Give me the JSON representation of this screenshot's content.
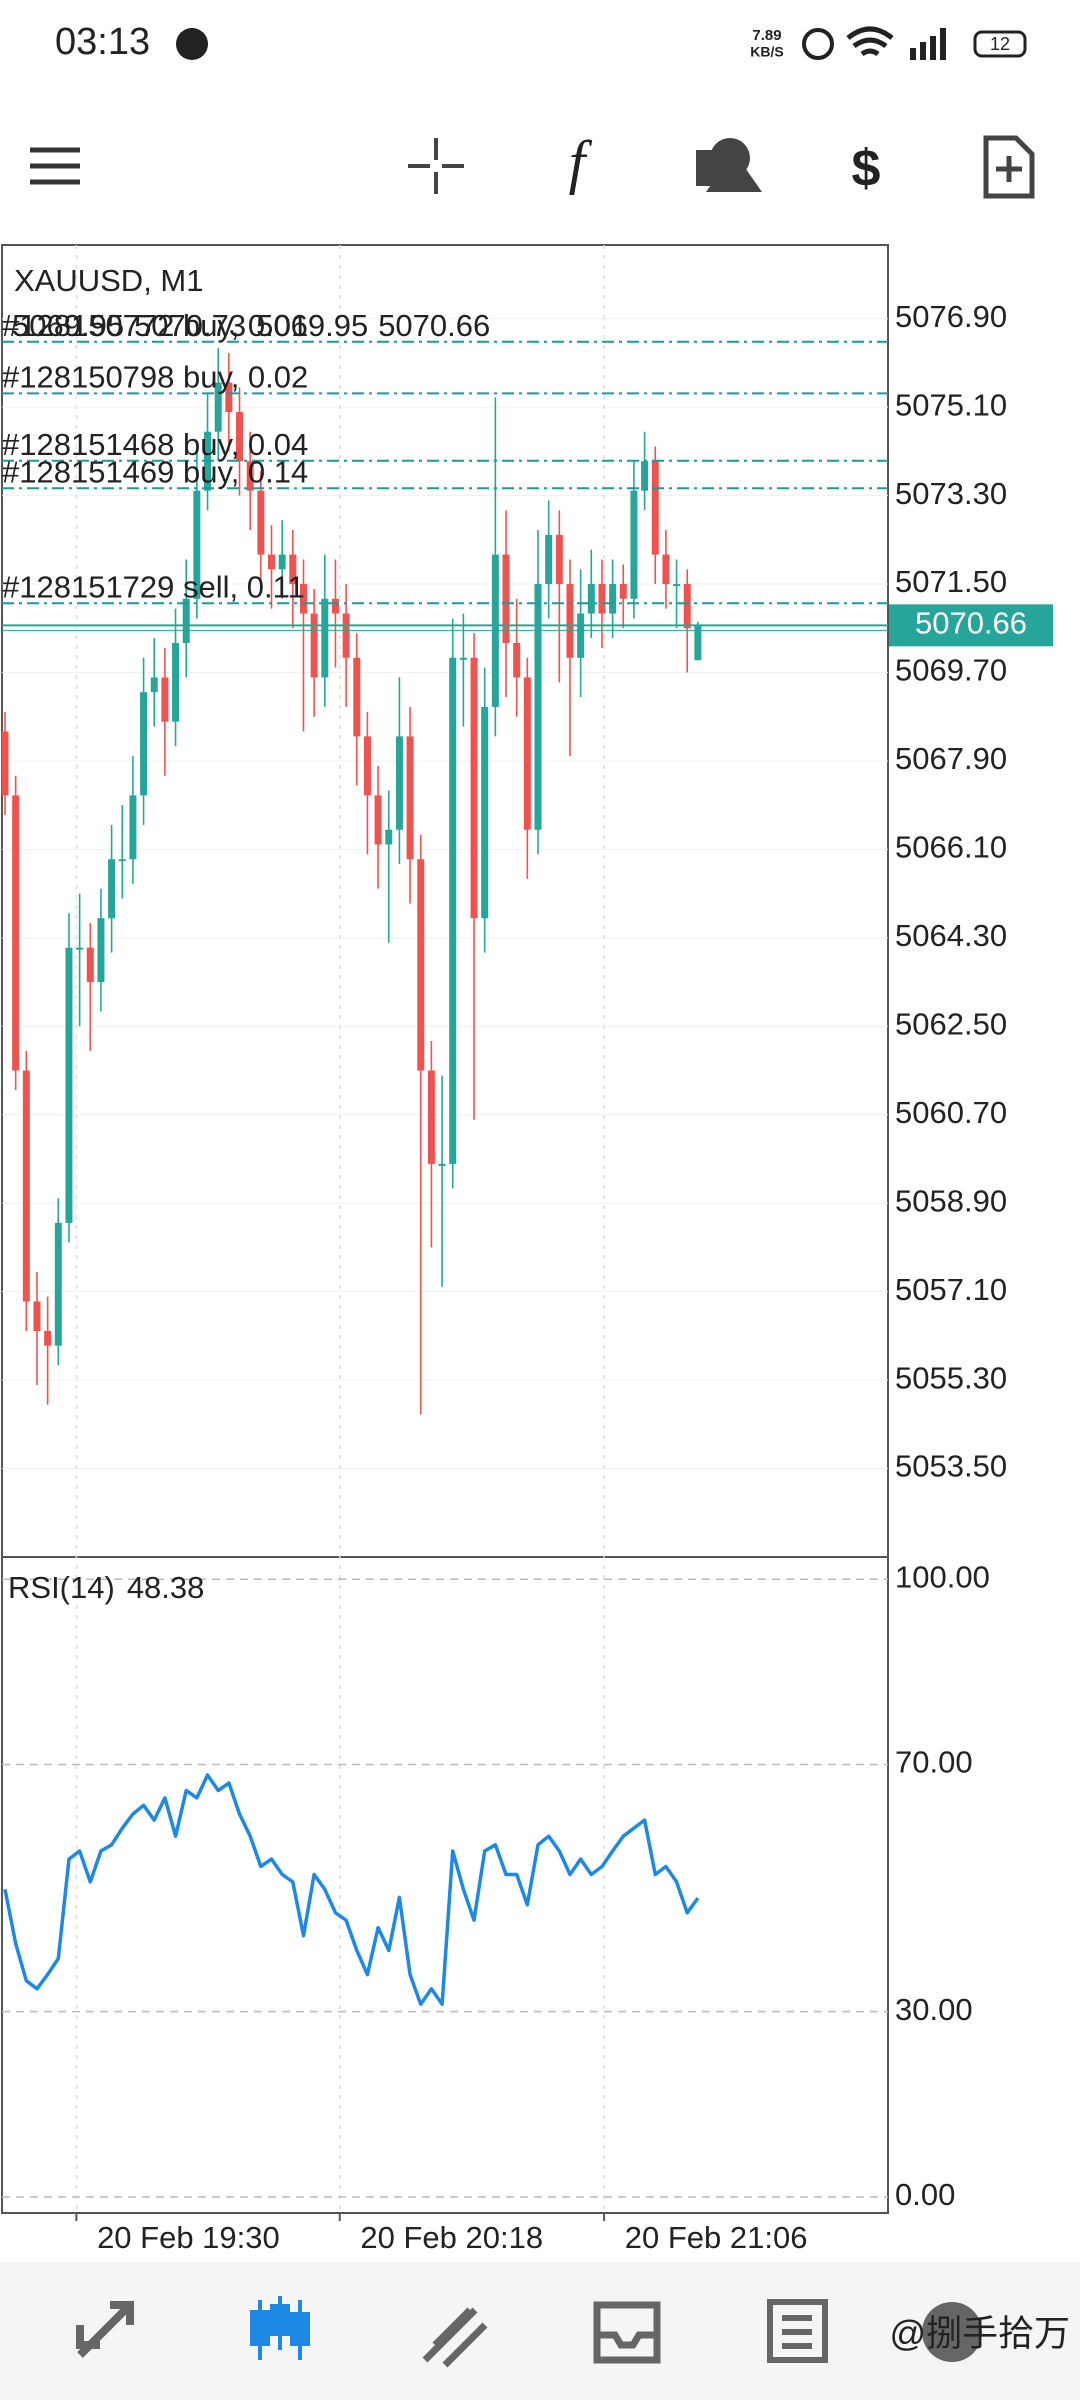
{
  "status_bar": {
    "time": "03:13",
    "net_speed": "7.89",
    "net_unit": "KB/S",
    "battery": "12"
  },
  "chart_data": [
    {
      "type": "candlestick",
      "title": "XAUUSD, M1",
      "open": [
        5068.5,
        5067.2,
        5061.6,
        5056.9,
        5056.3,
        5056.0,
        5058.5,
        5064.1,
        5064.1,
        5063.4,
        5064.7,
        5065.9,
        5065.9,
        5067.2,
        5069.3,
        5069.6,
        5068.7,
        5070.3,
        5071.2,
        5073.4,
        5074.6,
        5075.6,
        5075.0,
        5074.0,
        5073.4,
        5072.1,
        5071.8,
        5072.1,
        5071.5,
        5070.9,
        5069.6,
        5071.2,
        5070.9,
        5070.0,
        5068.4,
        5067.2,
        5066.2,
        5066.5,
        5068.4,
        5065.9,
        5061.6,
        5059.7,
        5059.7,
        5070.0,
        5070.0,
        5064.7,
        5069.0,
        5072.1,
        5070.3,
        5069.6,
        5066.5,
        5071.5,
        5072.5,
        5071.5,
        5070.0,
        5070.9,
        5071.5,
        5070.9,
        5071.5,
        5071.2,
        5073.4,
        5074.0,
        5072.1,
        5071.5,
        5071.5,
        5069.95
      ],
      "high": [
        5068.9,
        5067.6,
        5062.0,
        5057.5,
        5057.0,
        5059.0,
        5064.8,
        5065.2,
        5064.6,
        5065.3,
        5066.6,
        5067.0,
        5068.0,
        5070.0,
        5070.4,
        5070.2,
        5071.0,
        5072.0,
        5074.2,
        5075.4,
        5076.3,
        5076.2,
        5075.5,
        5074.6,
        5073.8,
        5072.7,
        5072.8,
        5072.6,
        5072.0,
        5071.4,
        5072.1,
        5072.0,
        5071.5,
        5070.5,
        5068.9,
        5067.8,
        5067.3,
        5069.6,
        5069.0,
        5066.4,
        5062.2,
        5061.5,
        5070.8,
        5070.9,
        5070.5,
        5069.8,
        5075.3,
        5073.0,
        5071.2,
        5070.0,
        5072.6,
        5073.2,
        5073.0,
        5072.0,
        5071.8,
        5072.2,
        5072.0,
        5072.0,
        5071.9,
        5074.0,
        5074.6,
        5074.3,
        5072.6,
        5072.0,
        5071.8,
        5070.73
      ],
      "low": [
        5066.8,
        5061.2,
        5056.3,
        5055.2,
        5054.8,
        5055.6,
        5058.1,
        5062.5,
        5062.0,
        5062.8,
        5064.0,
        5065.1,
        5065.4,
        5066.6,
        5068.6,
        5067.6,
        5068.2,
        5069.6,
        5070.8,
        5073.0,
        5074.0,
        5074.2,
        5073.3,
        5072.6,
        5071.5,
        5071.0,
        5071.2,
        5070.6,
        5068.5,
        5068.8,
        5069.0,
        5069.8,
        5069.0,
        5067.4,
        5066.0,
        5065.3,
        5064.2,
        5065.8,
        5065.0,
        5054.6,
        5058.0,
        5057.2,
        5059.2,
        5068.6,
        5060.6,
        5064.0,
        5068.4,
        5069.2,
        5068.8,
        5065.5,
        5066.0,
        5070.8,
        5069.5,
        5068.0,
        5069.2,
        5070.4,
        5070.2,
        5070.4,
        5070.6,
        5070.8,
        5073.0,
        5071.5,
        5071.0,
        5070.6,
        5069.7,
        5069.95
      ],
      "close": [
        5067.2,
        5061.6,
        5056.9,
        5056.3,
        5056.0,
        5058.5,
        5064.1,
        5064.1,
        5063.4,
        5064.7,
        5065.9,
        5065.9,
        5067.2,
        5069.3,
        5069.6,
        5068.7,
        5070.3,
        5071.2,
        5073.4,
        5074.6,
        5075.6,
        5075.0,
        5074.0,
        5073.4,
        5072.1,
        5071.8,
        5072.1,
        5071.5,
        5070.9,
        5069.6,
        5071.2,
        5070.9,
        5070.0,
        5068.4,
        5067.2,
        5066.2,
        5066.5,
        5068.4,
        5065.9,
        5061.6,
        5059.7,
        5059.7,
        5070.0,
        5070.0,
        5064.7,
        5069.0,
        5072.1,
        5070.3,
        5069.6,
        5066.5,
        5071.5,
        5072.5,
        5071.5,
        5070.0,
        5070.9,
        5071.5,
        5070.9,
        5071.5,
        5071.2,
        5073.4,
        5074.0,
        5072.1,
        5071.5,
        5071.5,
        5070.6,
        5070.66
      ],
      "up_color": "#26a69a",
      "down_color": "#ef5350",
      "order_color": "#1b9a9a",
      "ylim": [
        5051.7,
        5078.4
      ],
      "yticks": [
        {
          "value": 5076.9,
          "label": "5076.90"
        },
        {
          "value": 5075.1,
          "label": "5075.10"
        },
        {
          "value": 5073.3,
          "label": "5073.30"
        },
        {
          "value": 5071.5,
          "label": "5071.50"
        },
        {
          "value": 5069.7,
          "label": "5069.70"
        },
        {
          "value": 5067.9,
          "label": "5067.90"
        },
        {
          "value": 5066.1,
          "label": "5066.10"
        },
        {
          "value": 5064.3,
          "label": "5064.30"
        },
        {
          "value": 5062.5,
          "label": "5062.50"
        },
        {
          "value": 5060.7,
          "label": "5060.70"
        },
        {
          "value": 5058.9,
          "label": "5058.90"
        },
        {
          "value": 5057.1,
          "label": "5057.10"
        },
        {
          "value": 5055.3,
          "label": "5055.30"
        },
        {
          "value": 5053.5,
          "label": "5053.50"
        }
      ],
      "xticks": [
        {
          "value": 6.7,
          "label": "20 Feb 19:30"
        },
        {
          "value": 31.4,
          "label": "20 Feb 20:18"
        },
        {
          "value": 56.2,
          "label": "20 Feb 21:06"
        }
      ],
      "grid": true,
      "orders": [
        {
          "label": "#128150772 buy, 0.01",
          "price": 5076.43
        },
        {
          "label": "#128150798 buy, 0.02",
          "price": 5075.38
        },
        {
          "label": "#128151468 buy, 0.04",
          "price": 5074.01
        },
        {
          "label": "#128151469 buy, 0.14",
          "price": 5073.45
        },
        {
          "label": "#128151729 sell, 0.11",
          "price": 5071.11
        }
      ]
    },
    {
      "type": "line",
      "title": "RSI(14)",
      "values": [
        49.8,
        41,
        35,
        33.7,
        36,
        38.6,
        54.7,
        56,
        51,
        56,
        57,
        59.7,
        62,
        63.4,
        61,
        64.6,
        58.4,
        65.8,
        64.6,
        68.3,
        65.8,
        67,
        62,
        58.4,
        53.5,
        54.7,
        52.2,
        51,
        42.3,
        52.2,
        49.8,
        46,
        44.8,
        39.9,
        36,
        43.6,
        39.9,
        48.5,
        36,
        31.2,
        33.7,
        31.2,
        56,
        49.8,
        44.8,
        56,
        57,
        52.2,
        52.2,
        47.3,
        57,
        58.4,
        56,
        52.2,
        54.7,
        52.2,
        53.5,
        56,
        58.4,
        59.7,
        61,
        52.2,
        53.5,
        51,
        46,
        48.38
      ],
      "color": "#1e88e5",
      "ylim": [
        -2.6,
        103.6
      ],
      "yticks": [
        {
          "value": 100,
          "label": "100.00"
        },
        {
          "value": 70,
          "label": "70.00"
        },
        {
          "value": 30,
          "label": "30.00"
        },
        {
          "value": 0,
          "label": "0.00"
        }
      ]
    }
  ],
  "watermark": "@捌手拾万"
}
